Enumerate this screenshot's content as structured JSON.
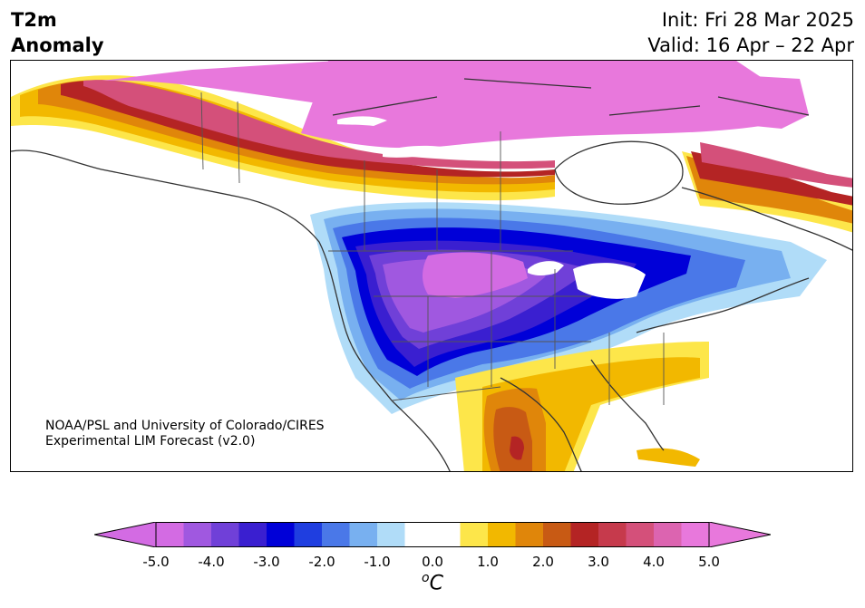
{
  "title": {
    "line1": "T2m",
    "line2": "Anomaly"
  },
  "init_text": "Init: Fri 28 Mar 2025",
  "valid_text": "Valid: 16 Apr – 22 Apr",
  "credit": {
    "line1": "NOAA/PSL and University of Colorado/CIRES",
    "line2": "Experimental LIM Forecast (v2.0)"
  },
  "colorbar": {
    "unit_label": "oC",
    "tick_labels": [
      "-5.0",
      "-4.0",
      "-3.0",
      "-2.0",
      "-1.0",
      "0.0",
      "1.0",
      "2.0",
      "3.0",
      "4.0",
      "5.0"
    ],
    "colors": [
      "#d36be3",
      "#a058e0",
      "#7040d8",
      "#3a1fd0",
      "#0000d8",
      "#1f3ee0",
      "#4a78e8",
      "#78b0f0",
      "#b0dcf8",
      "#ffffff",
      "#ffffff",
      "#fde64a",
      "#f2b800",
      "#e0860a",
      "#c85a14",
      "#b42424",
      "#c63a4c",
      "#d4507a",
      "#dc64b0",
      "#e878dc"
    ],
    "under_color": "#d36be3",
    "over_color": "#e878dc",
    "range": [
      -5.0,
      5.0
    ]
  }
}
